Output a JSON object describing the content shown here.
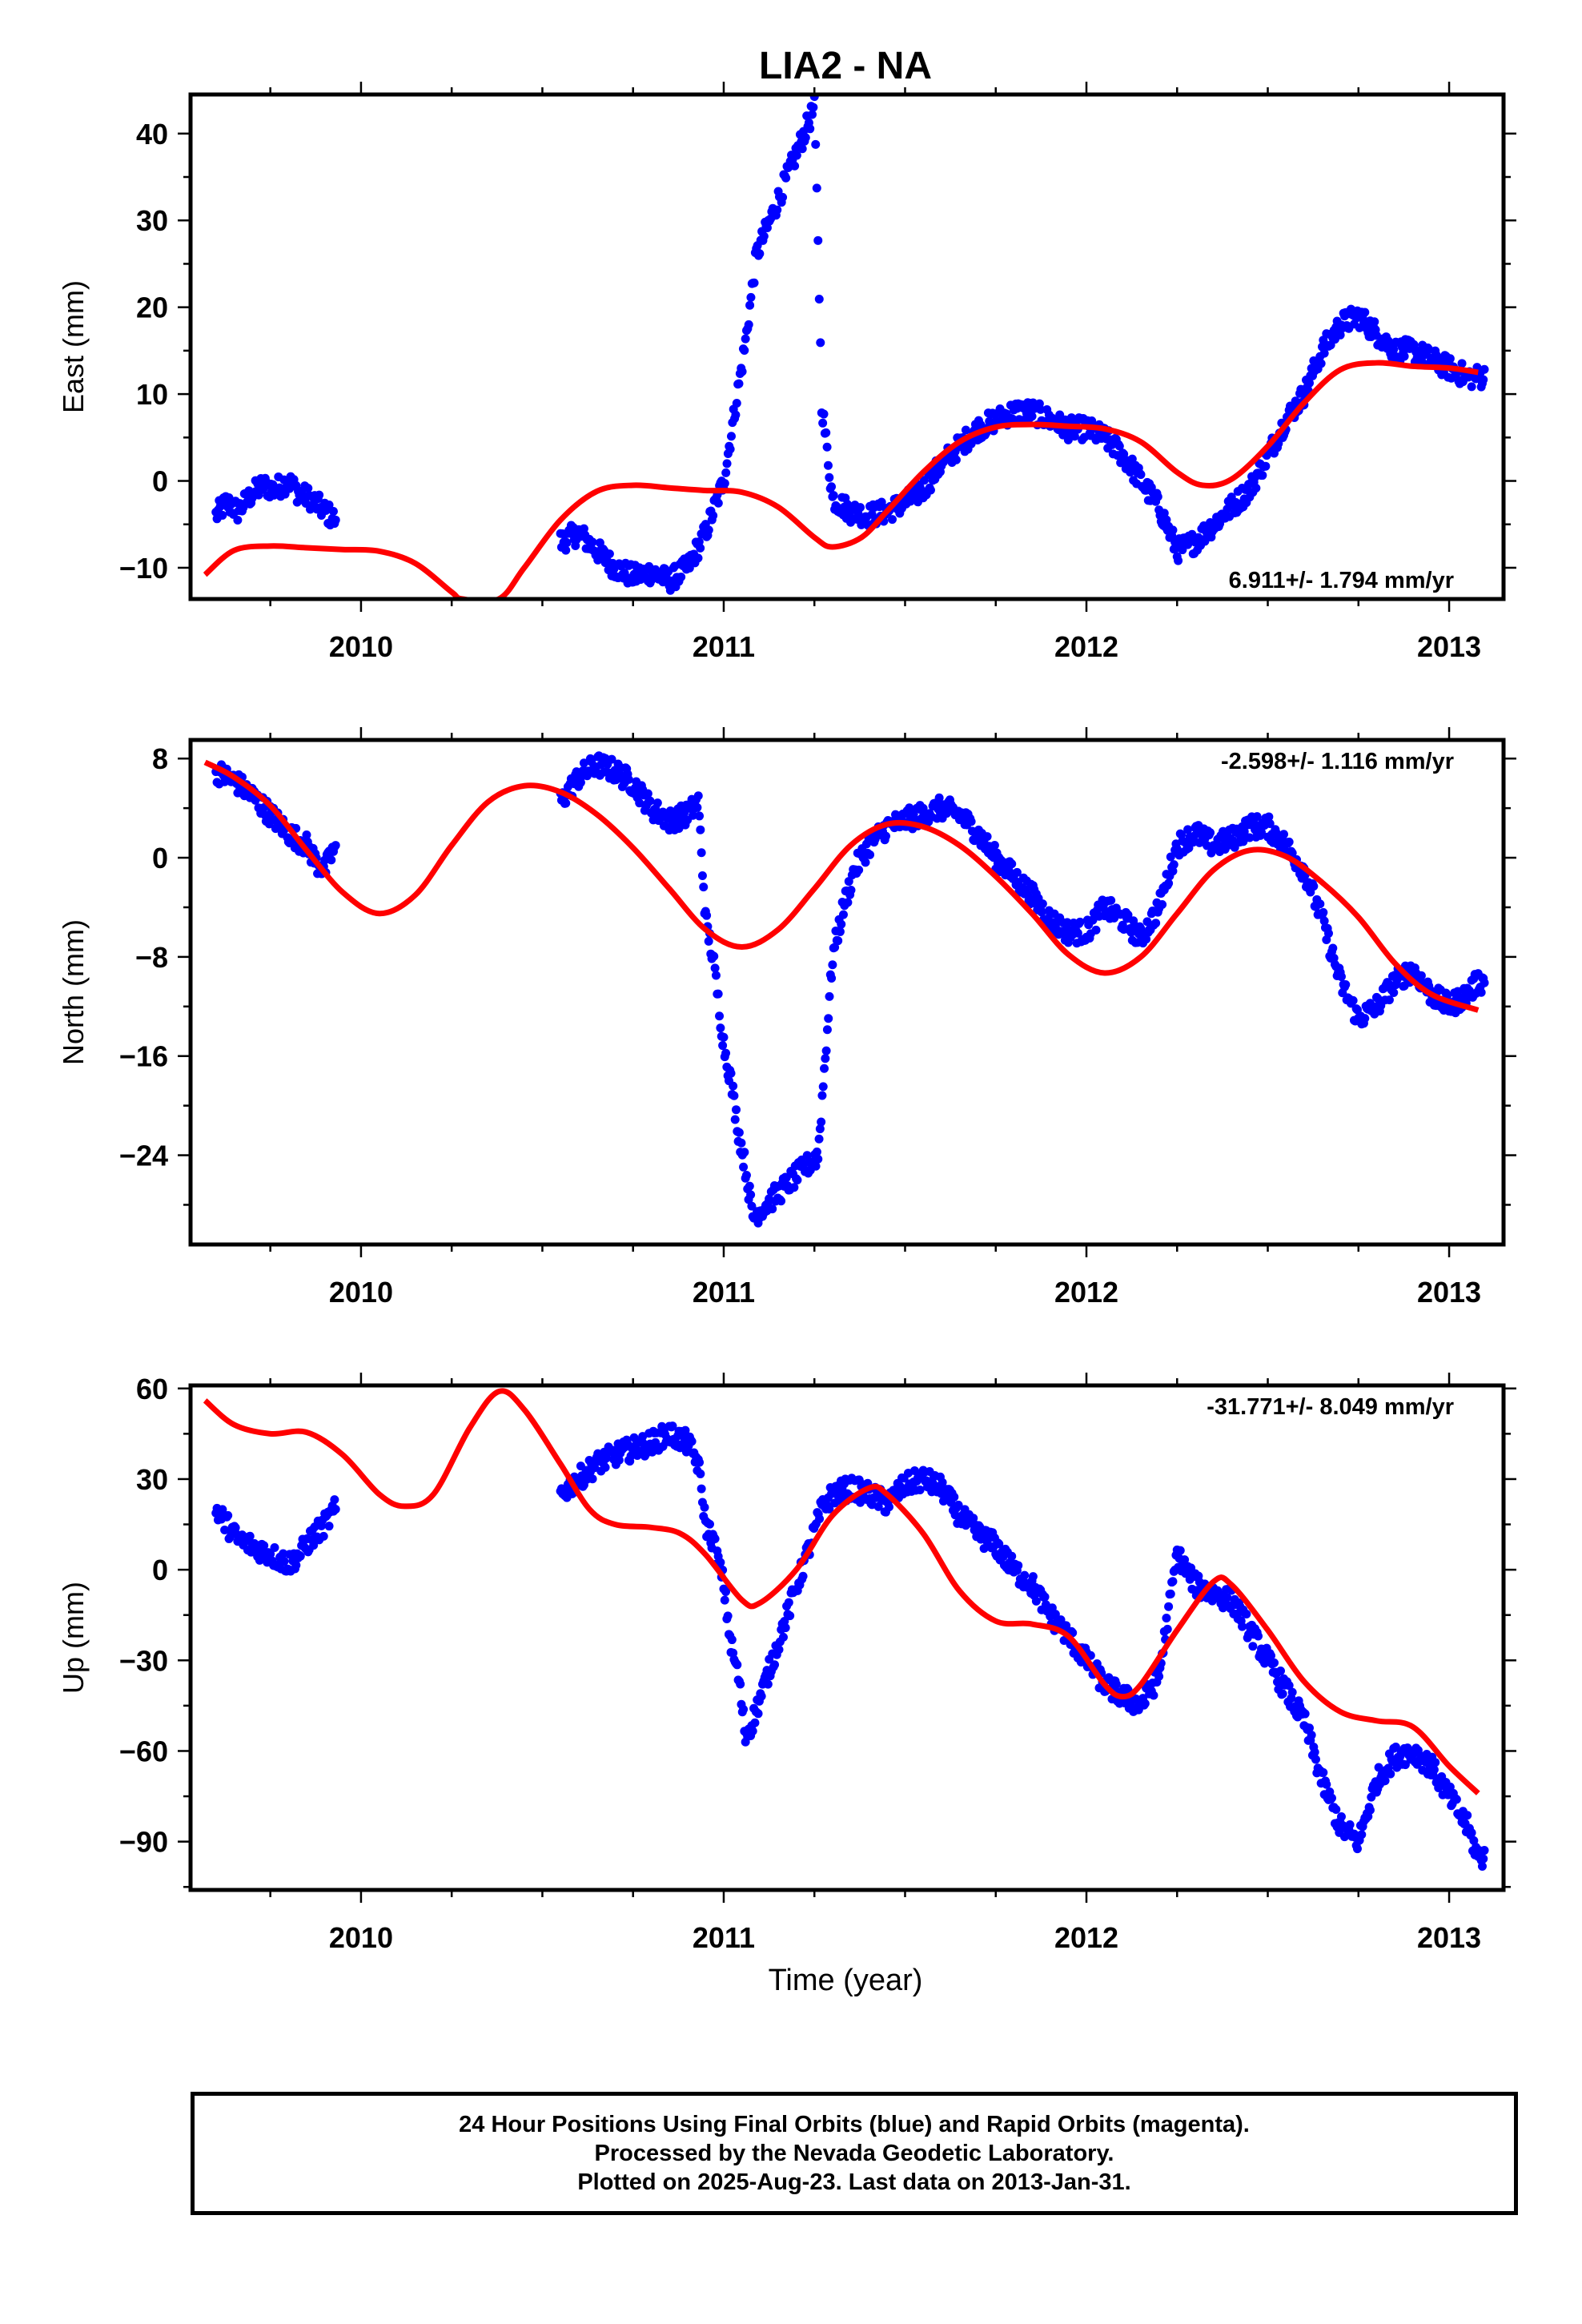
{
  "title": "LIA2 - NA",
  "colors": {
    "data": "#0000ff",
    "model": "#ff0000",
    "frame": "#000000"
  },
  "xlabel": "Time (year)",
  "footer": {
    "line1": "24 Hour Positions Using Final Orbits (blue) and Rapid Orbits (magenta).",
    "line2": "Processed by the Nevada Geodetic Laboratory.",
    "line3": "Plotted on 2025-Aug-23. Last data on 2013-Jan-31."
  },
  "chart_data": [
    {
      "type": "scatter",
      "name": "east",
      "ylabel": "East (mm)",
      "rate_label": "6.911+/- 1.794 mm/yr",
      "xlim": [
        2009.53,
        2013.15
      ],
      "ylim": [
        -13.6,
        44.5
      ],
      "x_ticks": [
        "2010",
        "2011",
        "2012",
        "2013"
      ],
      "y_ticks": [
        "40",
        "30",
        "20",
        "10",
        "0",
        "−10"
      ],
      "y_tick_values": [
        40,
        30,
        20,
        10,
        0,
        -10
      ],
      "observations": [
        [
          2009.6,
          -4
        ],
        [
          2009.63,
          -2.5
        ],
        [
          2009.66,
          -3.5
        ],
        [
          2009.7,
          -1.5
        ],
        [
          2009.73,
          -0.5
        ],
        [
          2009.76,
          -1
        ],
        [
          2009.8,
          0
        ],
        [
          2009.83,
          -1.5
        ],
        [
          2009.86,
          -2
        ],
        [
          2009.9,
          -3.5
        ],
        [
          2009.93,
          -4.5
        ],
        [
          2010.55,
          -7
        ],
        [
          2010.6,
          -6
        ],
        [
          2010.65,
          -8
        ],
        [
          2010.7,
          -10
        ],
        [
          2010.75,
          -11
        ],
        [
          2010.8,
          -10.5
        ],
        [
          2010.85,
          -11.5
        ],
        [
          2010.9,
          -10
        ],
        [
          2010.95,
          -6
        ],
        [
          2011.0,
          0
        ],
        [
          2011.03,
          8
        ],
        [
          2011.06,
          16
        ],
        [
          2011.09,
          26
        ],
        [
          2011.25,
          43
        ],
        [
          2011.26,
          28
        ],
        [
          2011.27,
          9
        ],
        [
          2011.3,
          -2
        ],
        [
          2011.35,
          -3.5
        ],
        [
          2011.4,
          -4
        ],
        [
          2011.45,
          -3.5
        ],
        [
          2011.5,
          -2.5
        ],
        [
          2011.55,
          -1
        ],
        [
          2011.6,
          2
        ],
        [
          2011.65,
          4
        ],
        [
          2011.7,
          6
        ],
        [
          2011.75,
          7
        ],
        [
          2011.8,
          8
        ],
        [
          2011.85,
          8
        ],
        [
          2011.9,
          7
        ],
        [
          2011.95,
          6
        ],
        [
          2012.0,
          6
        ],
        [
          2012.05,
          5
        ],
        [
          2012.1,
          3
        ],
        [
          2012.15,
          0
        ],
        [
          2012.2,
          -3
        ],
        [
          2012.25,
          -8
        ],
        [
          2012.3,
          -7
        ],
        [
          2012.35,
          -5
        ],
        [
          2012.4,
          -3
        ],
        [
          2012.45,
          -1
        ],
        [
          2012.5,
          3
        ],
        [
          2012.55,
          7
        ],
        [
          2012.6,
          10
        ],
        [
          2012.65,
          15
        ],
        [
          2012.7,
          18
        ],
        [
          2012.75,
          19
        ],
        [
          2012.8,
          17
        ],
        [
          2012.85,
          15
        ],
        [
          2012.9,
          15
        ],
        [
          2012.95,
          14
        ],
        [
          2013.0,
          13
        ],
        [
          2013.05,
          12
        ],
        [
          2013.08,
          12
        ]
      ],
      "model": [
        [
          2009.57,
          -10.8
        ],
        [
          2009.65,
          -8
        ],
        [
          2009.75,
          -7.5
        ],
        [
          2009.85,
          -7.7
        ],
        [
          2009.95,
          -7.9
        ],
        [
          2010.05,
          -8.1
        ],
        [
          2010.15,
          -9.5
        ],
        [
          2010.25,
          -12.8
        ],
        [
          2010.28,
          -13.6
        ],
        [
          2010.38,
          -13.6
        ],
        [
          2010.45,
          -10
        ],
        [
          2010.55,
          -4.5
        ],
        [
          2010.65,
          -1.2
        ],
        [
          2010.75,
          -0.5
        ],
        [
          2010.85,
          -0.8
        ],
        [
          2010.95,
          -1.1
        ],
        [
          2011.05,
          -1.3
        ],
        [
          2011.15,
          -3
        ],
        [
          2011.25,
          -6.5
        ],
        [
          2011.3,
          -7.6
        ],
        [
          2011.38,
          -6.5
        ],
        [
          2011.45,
          -3.5
        ],
        [
          2011.55,
          1
        ],
        [
          2011.65,
          4.5
        ],
        [
          2011.75,
          6.2
        ],
        [
          2011.85,
          6.5
        ],
        [
          2011.95,
          6.3
        ],
        [
          2012.05,
          6
        ],
        [
          2012.15,
          4.5
        ],
        [
          2012.25,
          1
        ],
        [
          2012.32,
          -0.5
        ],
        [
          2012.4,
          0.2
        ],
        [
          2012.5,
          4
        ],
        [
          2012.6,
          9
        ],
        [
          2012.7,
          12.8
        ],
        [
          2012.8,
          13.6
        ],
        [
          2012.9,
          13.2
        ],
        [
          2013.0,
          13
        ],
        [
          2013.08,
          12.5
        ]
      ]
    },
    {
      "type": "scatter",
      "name": "north",
      "ylabel": "North (mm)",
      "rate_label": "-2.598+/- 1.116 mm/yr",
      "xlim": [
        2009.53,
        2013.15
      ],
      "ylim": [
        -31.2,
        9.5
      ],
      "x_ticks": [
        "2010",
        "2011",
        "2012",
        "2013"
      ],
      "y_ticks": [
        "8",
        "0",
        "−8",
        "−16",
        "−24"
      ],
      "y_tick_values": [
        8,
        0,
        -8,
        -16,
        -24
      ],
      "observations": [
        [
          2009.6,
          7
        ],
        [
          2009.63,
          6.5
        ],
        [
          2009.66,
          6
        ],
        [
          2009.7,
          5
        ],
        [
          2009.75,
          3.5
        ],
        [
          2009.8,
          2
        ],
        [
          2009.85,
          1
        ],
        [
          2009.88,
          -0.5
        ],
        [
          2009.9,
          -1
        ],
        [
          2009.93,
          1
        ],
        [
          2010.55,
          4.5
        ],
        [
          2010.6,
          6.5
        ],
        [
          2010.65,
          7.5
        ],
        [
          2010.7,
          7
        ],
        [
          2010.75,
          6
        ],
        [
          2010.8,
          4
        ],
        [
          2010.85,
          3
        ],
        [
          2010.9,
          3.5
        ],
        [
          2010.93,
          4.5
        ],
        [
          2010.95,
          -5
        ],
        [
          2010.97,
          -8
        ],
        [
          2011.0,
          -15
        ],
        [
          2011.02,
          -18
        ],
        [
          2011.04,
          -22
        ],
        [
          2011.06,
          -25
        ],
        [
          2011.08,
          -29
        ],
        [
          2011.26,
          -24
        ],
        [
          2011.28,
          -16
        ],
        [
          2011.3,
          -8
        ],
        [
          2011.33,
          -4
        ],
        [
          2011.36,
          -1
        ],
        [
          2011.4,
          1
        ],
        [
          2011.45,
          2.5
        ],
        [
          2011.5,
          3
        ],
        [
          2011.55,
          3.5
        ],
        [
          2011.6,
          4
        ],
        [
          2011.65,
          3.5
        ],
        [
          2011.7,
          2
        ],
        [
          2011.75,
          0
        ],
        [
          2011.8,
          -1.5
        ],
        [
          2011.85,
          -3
        ],
        [
          2011.9,
          -5
        ],
        [
          2011.95,
          -6
        ],
        [
          2012.0,
          -6
        ],
        [
          2012.05,
          -4
        ],
        [
          2012.1,
          -5
        ],
        [
          2012.15,
          -6.5
        ],
        [
          2012.2,
          -4
        ],
        [
          2012.25,
          1
        ],
        [
          2012.3,
          2
        ],
        [
          2012.35,
          1
        ],
        [
          2012.4,
          1.5
        ],
        [
          2012.45,
          2.5
        ],
        [
          2012.5,
          2.5
        ],
        [
          2012.55,
          1
        ],
        [
          2012.6,
          -1
        ],
        [
          2012.65,
          -5
        ],
        [
          2012.7,
          -10
        ],
        [
          2012.75,
          -13
        ],
        [
          2012.8,
          -12
        ],
        [
          2012.85,
          -10
        ],
        [
          2012.9,
          -9
        ],
        [
          2012.95,
          -11
        ],
        [
          2013.0,
          -12
        ],
        [
          2013.05,
          -11
        ],
        [
          2013.08,
          -10
        ]
      ],
      "model": [
        [
          2009.57,
          7.7
        ],
        [
          2009.65,
          6.5
        ],
        [
          2009.75,
          4.2
        ],
        [
          2009.85,
          0.6
        ],
        [
          2009.95,
          -2.8
        ],
        [
          2010.05,
          -4.5
        ],
        [
          2010.15,
          -3
        ],
        [
          2010.25,
          1
        ],
        [
          2010.35,
          4.5
        ],
        [
          2010.45,
          5.8
        ],
        [
          2010.55,
          5.3
        ],
        [
          2010.65,
          3.5
        ],
        [
          2010.75,
          0.8
        ],
        [
          2010.85,
          -2.5
        ],
        [
          2010.95,
          -5.8
        ],
        [
          2011.05,
          -7.2
        ],
        [
          2011.15,
          -5.8
        ],
        [
          2011.25,
          -2.5
        ],
        [
          2011.35,
          1
        ],
        [
          2011.45,
          2.7
        ],
        [
          2011.55,
          2.5
        ],
        [
          2011.65,
          1
        ],
        [
          2011.75,
          -1.5
        ],
        [
          2011.85,
          -4.5
        ],
        [
          2011.95,
          -7.8
        ],
        [
          2012.05,
          -9.3
        ],
        [
          2012.15,
          -8
        ],
        [
          2012.25,
          -4.5
        ],
        [
          2012.35,
          -1
        ],
        [
          2012.45,
          0.6
        ],
        [
          2012.55,
          0.1
        ],
        [
          2012.65,
          -2
        ],
        [
          2012.75,
          -4.8
        ],
        [
          2012.85,
          -8.5
        ],
        [
          2012.95,
          -11
        ],
        [
          2013.08,
          -12.3
        ]
      ]
    },
    {
      "type": "scatter",
      "name": "up",
      "ylabel": "Up (mm)",
      "rate_label": "-31.771+/- 8.049 mm/yr",
      "xlim": [
        2009.53,
        2013.15
      ],
      "ylim": [
        -106,
        61
      ],
      "x_ticks": [
        "2010",
        "2011",
        "2012",
        "2013"
      ],
      "y_ticks": [
        "60",
        "30",
        "0",
        "−30",
        "−60",
        "−90"
      ],
      "y_tick_values": [
        60,
        30,
        0,
        -30,
        -60,
        -90
      ],
      "observations": [
        [
          2009.6,
          20
        ],
        [
          2009.63,
          15
        ],
        [
          2009.66,
          10
        ],
        [
          2009.7,
          8
        ],
        [
          2009.75,
          5
        ],
        [
          2009.8,
          2
        ],
        [
          2009.83,
          5
        ],
        [
          2009.86,
          10
        ],
        [
          2009.9,
          15
        ],
        [
          2009.93,
          20
        ],
        [
          2010.55,
          25
        ],
        [
          2010.6,
          30
        ],
        [
          2010.65,
          35
        ],
        [
          2010.7,
          38
        ],
        [
          2010.75,
          40
        ],
        [
          2010.8,
          42
        ],
        [
          2010.85,
          45
        ],
        [
          2010.9,
          42
        ],
        [
          2010.93,
          35
        ],
        [
          2010.95,
          15
        ],
        [
          2010.97,
          10
        ],
        [
          2011.0,
          -5
        ],
        [
          2011.02,
          -25
        ],
        [
          2011.04,
          -35
        ],
        [
          2011.06,
          -55
        ],
        [
          2011.08,
          -50
        ],
        [
          2011.27,
          20
        ],
        [
          2011.3,
          25
        ],
        [
          2011.35,
          27
        ],
        [
          2011.4,
          25
        ],
        [
          2011.45,
          22
        ],
        [
          2011.5,
          28
        ],
        [
          2011.55,
          30
        ],
        [
          2011.6,
          27
        ],
        [
          2011.65,
          18
        ],
        [
          2011.7,
          12
        ],
        [
          2011.75,
          8
        ],
        [
          2011.8,
          0
        ],
        [
          2011.85,
          -5
        ],
        [
          2011.9,
          -15
        ],
        [
          2011.95,
          -22
        ],
        [
          2012.0,
          -30
        ],
        [
          2012.05,
          -38
        ],
        [
          2012.1,
          -42
        ],
        [
          2012.15,
          -45
        ],
        [
          2012.2,
          -35
        ],
        [
          2012.25,
          5
        ],
        [
          2012.3,
          -5
        ],
        [
          2012.35,
          -8
        ],
        [
          2012.4,
          -10
        ],
        [
          2012.45,
          -20
        ],
        [
          2012.5,
          -30
        ],
        [
          2012.55,
          -40
        ],
        [
          2012.6,
          -50
        ],
        [
          2012.65,
          -70
        ],
        [
          2012.7,
          -85
        ],
        [
          2012.75,
          -90
        ],
        [
          2012.8,
          -70
        ],
        [
          2012.85,
          -62
        ],
        [
          2012.9,
          -60
        ],
        [
          2012.95,
          -65
        ],
        [
          2013.0,
          -75
        ],
        [
          2013.05,
          -85
        ],
        [
          2013.08,
          -95
        ]
      ],
      "model": [
        [
          2009.57,
          56
        ],
        [
          2009.65,
          48
        ],
        [
          2009.75,
          45
        ],
        [
          2009.85,
          45.5
        ],
        [
          2009.95,
          38
        ],
        [
          2010.05,
          25
        ],
        [
          2010.12,
          21
        ],
        [
          2010.2,
          25
        ],
        [
          2010.3,
          47
        ],
        [
          2010.38,
          59
        ],
        [
          2010.45,
          53
        ],
        [
          2010.55,
          35
        ],
        [
          2010.63,
          20
        ],
        [
          2010.7,
          15
        ],
        [
          2010.8,
          14
        ],
        [
          2010.88,
          12
        ],
        [
          2010.95,
          5
        ],
        [
          2011.05,
          -10
        ],
        [
          2011.1,
          -11
        ],
        [
          2011.2,
          0
        ],
        [
          2011.3,
          18
        ],
        [
          2011.4,
          27
        ],
        [
          2011.45,
          25
        ],
        [
          2011.55,
          12
        ],
        [
          2011.65,
          -7
        ],
        [
          2011.75,
          -17
        ],
        [
          2011.85,
          -18
        ],
        [
          2011.95,
          -22
        ],
        [
          2012.05,
          -38
        ],
        [
          2012.1,
          -42
        ],
        [
          2012.15,
          -38
        ],
        [
          2012.25,
          -20
        ],
        [
          2012.35,
          -4
        ],
        [
          2012.4,
          -5
        ],
        [
          2012.5,
          -20
        ],
        [
          2012.6,
          -37
        ],
        [
          2012.7,
          -47
        ],
        [
          2012.8,
          -50
        ],
        [
          2012.9,
          -52
        ],
        [
          2013.0,
          -65
        ],
        [
          2013.08,
          -74
        ]
      ]
    }
  ]
}
